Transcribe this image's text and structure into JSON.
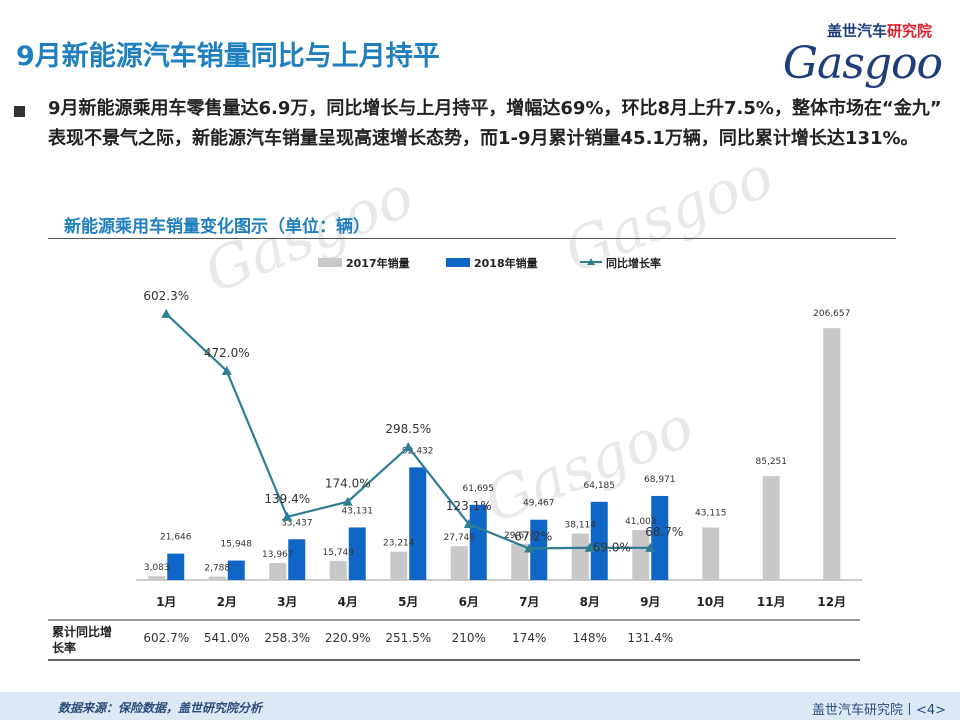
{
  "header": {
    "title": "9月新能源汽车销量同比与上月持平",
    "brand_cn_a": "盖世汽车",
    "brand_cn_b": "研究院",
    "brand_en": "Gasgoo"
  },
  "intro": "9月新能源乘用车零售量达6.9万，同比增长与上月持平，增幅达69%，环比8月上升7.5%，整体市场在“金九” 表现不景气之际，新能源汽车销量呈现高速增长态势，而1-9月累计销量45.1万辆，同比累计增长达131%。",
  "subtitle": "新能源乘用车销量变化图示（单位：辆）",
  "watermark": "Gasgoo",
  "chart_data": {
    "type": "bar",
    "categories": [
      "1月",
      "2月",
      "3月",
      "4月",
      "5月",
      "6月",
      "7月",
      "8月",
      "9月",
      "10月",
      "11月",
      "12月"
    ],
    "series": [
      {
        "name": "2017年销量",
        "color": "#c8c8c8",
        "values": [
          3083,
          2788,
          13967,
          15749,
          23214,
          27746,
          29676,
          38114,
          41003,
          43115,
          85251,
          206657
        ],
        "labels": [
          "3,083",
          "2,788",
          "13,967",
          "15,749",
          "23,214",
          "27,746",
          "29,676",
          "38,114",
          "41,003",
          "43,115",
          "85,251",
          "206,657"
        ]
      },
      {
        "name": "2018年销量",
        "color": "#1066c6",
        "values": [
          21646,
          15948,
          33437,
          43131,
          92432,
          61695,
          49467,
          64185,
          68971,
          null,
          null,
          null
        ],
        "labels": [
          "21,646",
          "15,948",
          "33,437",
          "43,131",
          "92,432",
          "61,695",
          "49,467",
          "64,185",
          "68,971",
          "",
          "",
          ""
        ]
      }
    ],
    "line": {
      "name": "同比增长率",
      "color": "#2e7d96",
      "values": [
        602.3,
        472.0,
        139.4,
        174.0,
        298.5,
        123.1,
        67.2,
        69.0,
        68.7
      ],
      "labels": [
        "602.3%",
        "472.0%",
        "139.4%",
        "174.0%",
        "298.5%",
        "123.1%",
        "67.2%",
        "69.0%",
        "68.7%"
      ]
    },
    "ylim": [
      0,
      215000
    ],
    "ylim_line": [
      0,
      700
    ],
    "legend_position": "top-center",
    "table": {
      "row_label": "累计同比增长率",
      "values": [
        "602.7%",
        "541.0%",
        "258.3%",
        "220.9%",
        "251.5%",
        "210%",
        "174%",
        "148%",
        "131.4%",
        "",
        "",
        ""
      ]
    }
  },
  "footer": {
    "source": "数据来源：保险数据，盖世研究院分析",
    "page": "盖世汽车研究院丨<4>"
  }
}
